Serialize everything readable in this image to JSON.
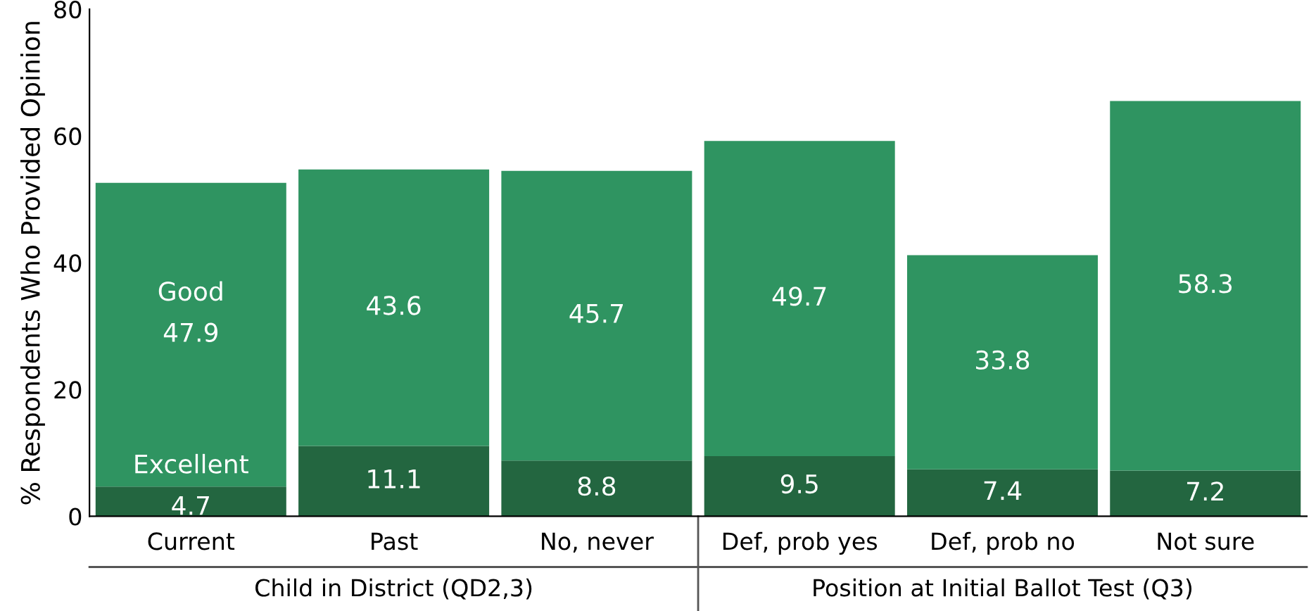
{
  "chart_data": {
    "type": "bar",
    "stacked": true,
    "ylabel": "% Respondents Who Provided Opinion",
    "categories": [
      "Current",
      "Past",
      "No, never",
      "Def, prob yes",
      "Def, prob no",
      "Not sure"
    ],
    "series": [
      {
        "name": "Excellent",
        "color": "#236640",
        "values": [
          4.7,
          11.1,
          8.8,
          9.5,
          7.4,
          7.2
        ]
      },
      {
        "name": "Good",
        "color": "#2f9461",
        "values": [
          47.9,
          43.6,
          45.7,
          49.7,
          33.8,
          58.3
        ]
      }
    ],
    "ylim": [
      0,
      80
    ],
    "yticks": [
      0,
      20,
      40,
      60,
      80
    ],
    "grid": false,
    "legend": false,
    "data_labels": true,
    "annotations": [
      "Child in District (QD2,3)",
      "Position at Initial Ballot Test (Q3)"
    ]
  }
}
